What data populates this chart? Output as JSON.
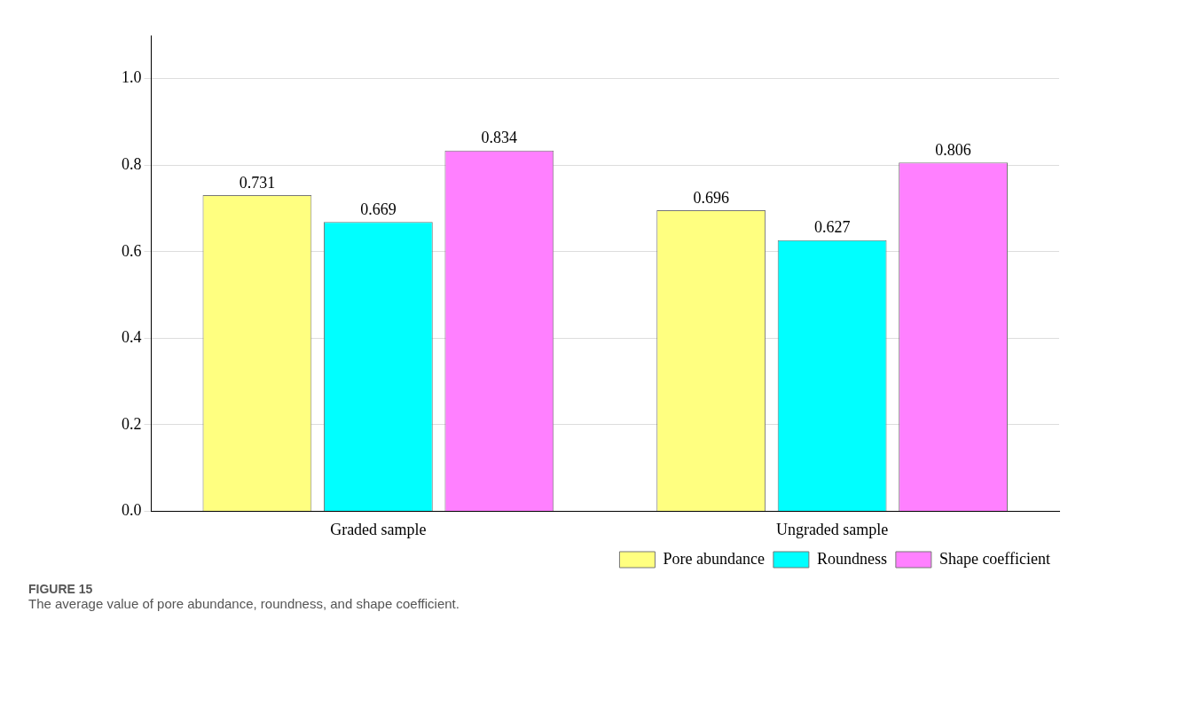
{
  "chart_data": {
    "type": "bar",
    "categories": [
      "Graded sample",
      "Ungraded sample"
    ],
    "series": [
      {
        "name": "Pore abundance",
        "color": "#ffff80",
        "values": [
          0.731,
          0.696
        ]
      },
      {
        "name": "Roundness",
        "color": "#00ffff",
        "values": [
          0.669,
          0.627
        ]
      },
      {
        "name": "Shape coefficient",
        "color": "#ff80ff",
        "values": [
          0.834,
          0.806
        ]
      }
    ],
    "ylim": [
      0,
      1.1
    ],
    "yticks": [
      {
        "value": 0,
        "label": "0.0"
      },
      0.2,
      0.4,
      0.6,
      0.8,
      {
        "value": 1,
        "label": "1.0"
      }
    ],
    "grid": "y",
    "legend": "bottom right",
    "data_labels": true,
    "annotations": [
      "FIGURE 15",
      "The average value of pore abundance, roundness, and shape coefficient."
    ]
  }
}
